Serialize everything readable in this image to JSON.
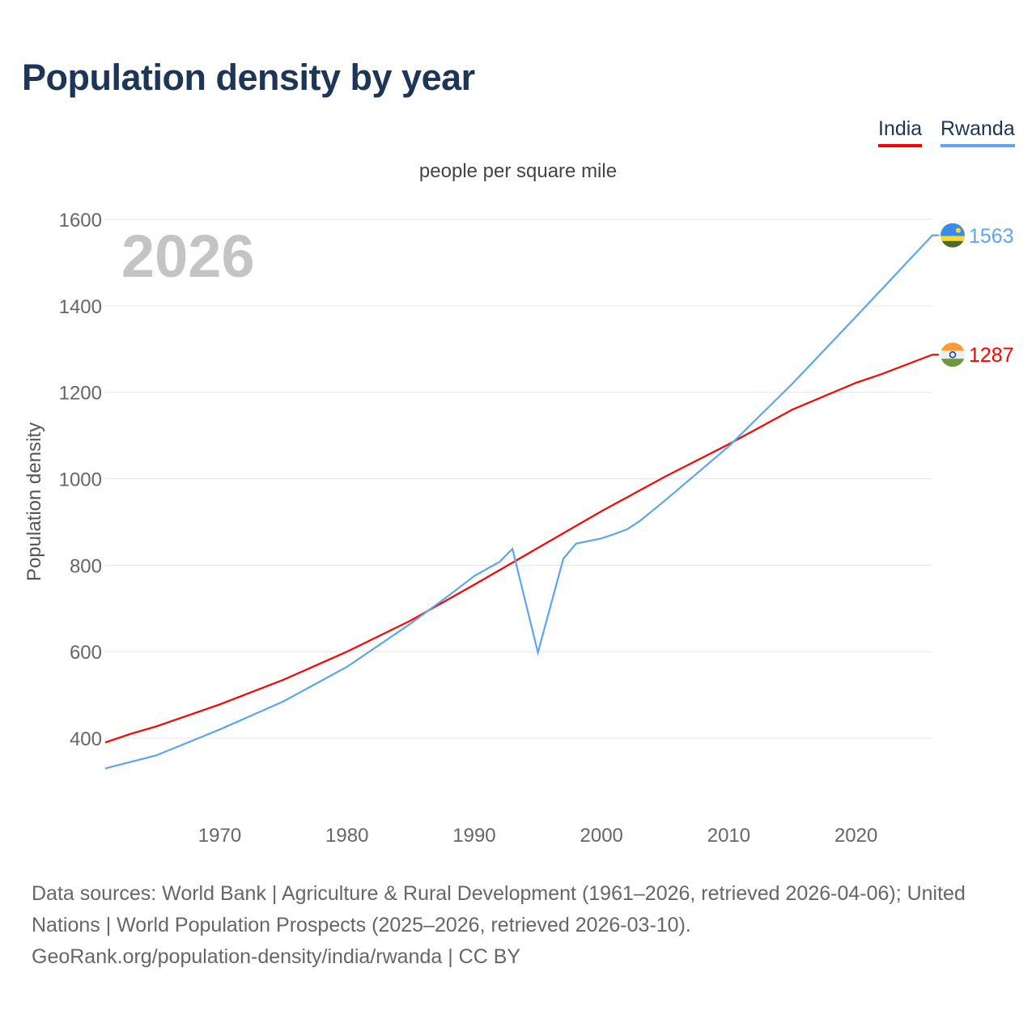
{
  "title": "Population density by year",
  "legend": [
    {
      "name": "India",
      "color": "#ff0000"
    },
    {
      "name": "Rwanda",
      "color": "#5ba6ec"
    }
  ],
  "subtitle": "people per square mile",
  "source": "Data sources: World Bank | Agriculture & Rural Development (1961–2026, retrieved 2026-04-06); United Nations | World Population Prospects (2025–2026, retrieved 2026-03-10).",
  "link": "GeoRank.org/population-density/india/rwanda | CC BY",
  "chart_data": {
    "type": "line",
    "ylabel": "Population density",
    "year_label": "2026",
    "xlim": [
      1961,
      2026
    ],
    "ylim": [
      300,
      1600
    ],
    "xticks": [
      1970,
      1980,
      1990,
      2000,
      2010,
      2020
    ],
    "yticks": [
      400,
      600,
      800,
      1000,
      1200,
      1400,
      1600
    ],
    "grid": true,
    "series": [
      {
        "name": "India",
        "color": "#ff0000",
        "end_label": "1287",
        "flag": "india-flag",
        "x": [
          1961,
          1963,
          1965,
          1970,
          1975,
          1980,
          1985,
          1990,
          1995,
          2000,
          2005,
          2010,
          2015,
          2020,
          2022,
          2026
        ],
        "y": [
          390,
          410,
          427,
          478,
          535,
          600,
          672,
          755,
          840,
          925,
          1005,
          1080,
          1160,
          1222,
          1242,
          1287
        ]
      },
      {
        "name": "Rwanda",
        "color": "#5ba6ec",
        "end_label": "1563",
        "flag": "rwanda-flag",
        "x": [
          1961,
          1965,
          1970,
          1975,
          1980,
          1985,
          1988,
          1990,
          1992,
          1993,
          1995,
          1997,
          1998,
          2000,
          2001,
          2002,
          2003,
          2005,
          2010,
          2015,
          2020,
          2026
        ],
        "y": [
          330,
          360,
          420,
          485,
          565,
          665,
          730,
          775,
          808,
          838,
          598,
          815,
          850,
          862,
          872,
          883,
          902,
          950,
          1075,
          1220,
          1375,
          1563
        ]
      }
    ]
  }
}
